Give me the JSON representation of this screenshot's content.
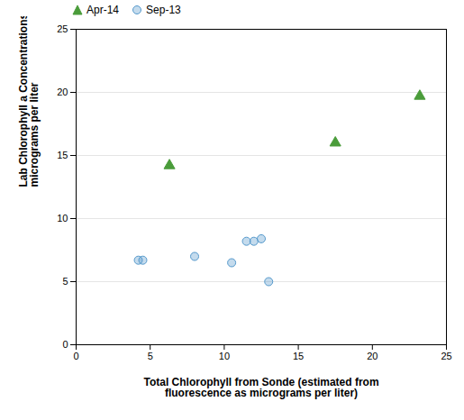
{
  "chart_data": {
    "type": "scatter",
    "xlabel": "Total Chlorophyll from Sonde (estimated from\nfluorescence as micrograms per liter)",
    "ylabel": "Lab Chlorophyll a Concentrations, in\nmicrograms per liter",
    "series": [
      {
        "name": "Apr-14",
        "color": "#4a9c3a",
        "marker": "triangle",
        "x": [
          6.3,
          17.5,
          23.2
        ],
        "values": [
          14.2,
          16.0,
          19.7
        ]
      },
      {
        "name": "Sep-13",
        "color": "#5599cc",
        "marker": "circle",
        "x": [
          4.2,
          4.5,
          8.0,
          10.5,
          11.5,
          12.0,
          12.5,
          13.0
        ],
        "values": [
          6.7,
          6.7,
          7.0,
          6.5,
          8.2,
          8.2,
          8.4,
          5.0
        ]
      }
    ],
    "xlim": [
      0,
      25
    ],
    "ylim": [
      0,
      25
    ],
    "xticks": [
      0,
      5,
      10,
      15,
      20,
      25
    ],
    "yticks": [
      0,
      5,
      10,
      15,
      20,
      25
    ],
    "grid": "y",
    "legend": "upper left"
  }
}
